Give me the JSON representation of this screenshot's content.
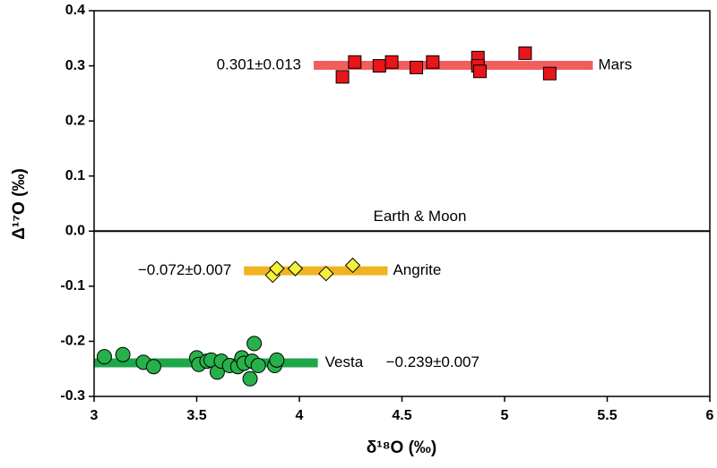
{
  "chart_data": {
    "type": "scatter",
    "x_label": "δ¹⁸O (‰)",
    "y_label": "Δ¹⁷O (‰)",
    "xlim": [
      3,
      6
    ],
    "ylim": [
      -0.3,
      0.4
    ],
    "xticks": [
      3,
      3.5,
      4,
      4.5,
      5,
      5.5,
      6
    ],
    "yticks": [
      0.4,
      0.3,
      0.2,
      0.1,
      {
        "value": 0,
        "label": "0.0"
      },
      -0.1,
      -0.2,
      -0.3
    ],
    "reference_line": {
      "value": 0,
      "label": "Earth & Moon"
    },
    "series": [
      {
        "name": "Mars",
        "color": "#e8151b",
        "marker": "square",
        "x": [
          4.21,
          4.27,
          4.39,
          4.45,
          4.57,
          4.65,
          4.87,
          4.87,
          4.88,
          5.1,
          5.22
        ],
        "values": [
          0.28,
          0.307,
          0.3,
          0.307,
          0.297,
          0.307,
          0.315,
          0.3,
          0.29,
          0.323,
          0.286
        ],
        "fit": {
          "value": 0.301,
          "label": "0.301±0.013",
          "band_color": "#f25e5e",
          "xrange": [
            4.07,
            5.43
          ]
        }
      },
      {
        "name": "Angrite",
        "color": "#f5f03a",
        "marker": "diamond",
        "x": [
          3.87,
          3.89,
          3.98,
          4.13,
          4.26
        ],
        "values": [
          -0.08,
          -0.068,
          -0.068,
          -0.077,
          -0.062
        ],
        "fit": {
          "value": -0.072,
          "label": "−0.072±0.007",
          "band_color": "#f0b323",
          "xrange": [
            3.73,
            4.43
          ]
        }
      },
      {
        "name": "Vesta",
        "color": "#27b14b",
        "marker": "circle",
        "x": [
          3.05,
          3.14,
          3.24,
          3.29,
          3.5,
          3.51,
          3.55,
          3.57,
          3.6,
          3.62,
          3.66,
          3.7,
          3.72,
          3.73,
          3.76,
          3.77,
          3.78,
          3.8,
          3.88,
          3.89
        ],
        "values": [
          -0.228,
          -0.224,
          -0.238,
          -0.246,
          -0.23,
          -0.242,
          -0.236,
          -0.234,
          -0.256,
          -0.236,
          -0.244,
          -0.246,
          -0.23,
          -0.24,
          -0.268,
          -0.236,
          -0.204,
          -0.244,
          -0.244,
          -0.234
        ],
        "fit": {
          "value": -0.239,
          "label": "−0.239±0.007",
          "band_color": "#1ea64a",
          "xrange": [
            3.0,
            4.09
          ]
        }
      }
    ]
  }
}
